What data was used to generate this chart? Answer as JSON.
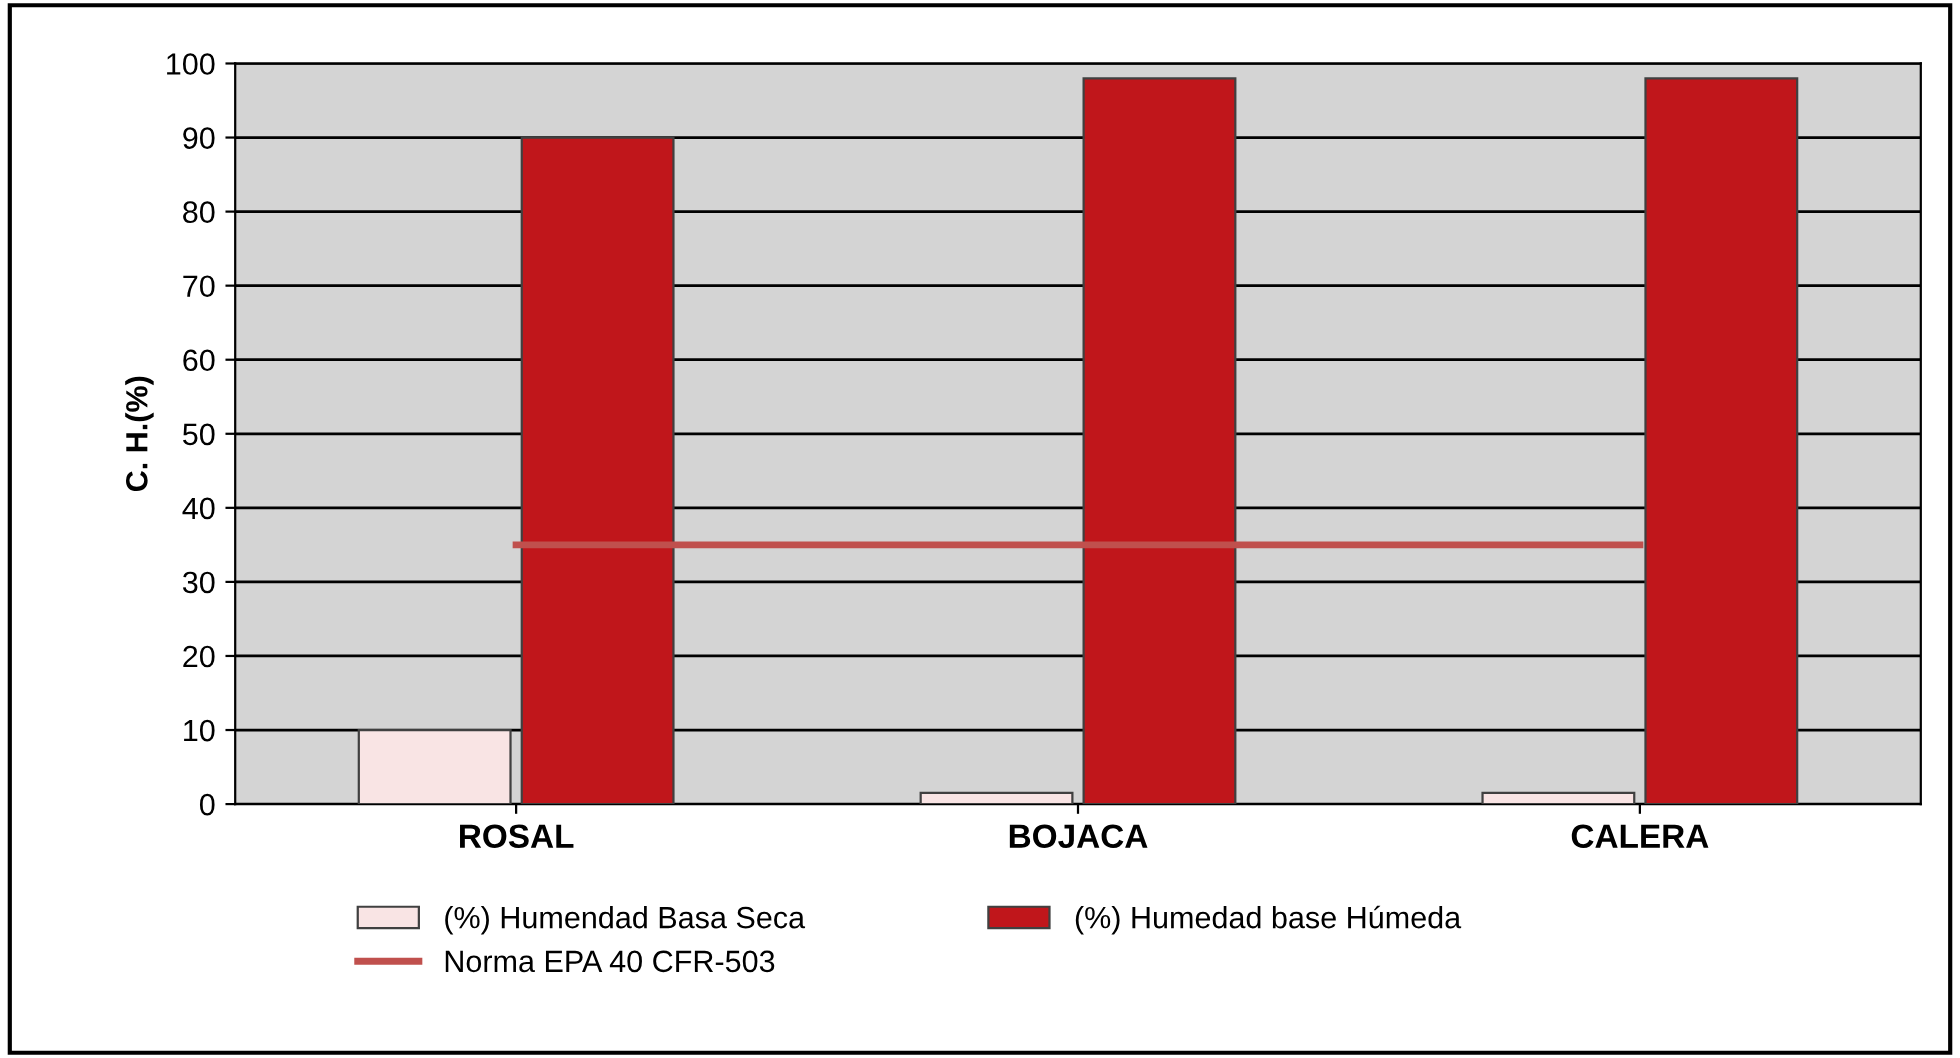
{
  "chart_data": {
    "type": "bar",
    "ylabel": "C. H.(%)",
    "categories": [
      "ROSAL",
      "BOJACA",
      "CALERA"
    ],
    "series": [
      {
        "name": "(%) Humendad Basa Seca",
        "color": "#f9e4e4",
        "values": [
          10,
          1.5,
          1.5
        ]
      },
      {
        "name": "(%) Humedad base Húmeda",
        "color": "#c0161b",
        "values": [
          90,
          98,
          98
        ]
      },
      {
        "name": "Norma EPA 40 CFR-503",
        "type": "line",
        "color": "#c0504d",
        "values": [
          35,
          35,
          35
        ]
      }
    ],
    "ylim": [
      0,
      100
    ],
    "yticks": [
      0,
      10,
      20,
      30,
      40,
      50,
      60,
      70,
      80,
      90,
      100
    ],
    "grid": "y",
    "legend": "bottom"
  }
}
